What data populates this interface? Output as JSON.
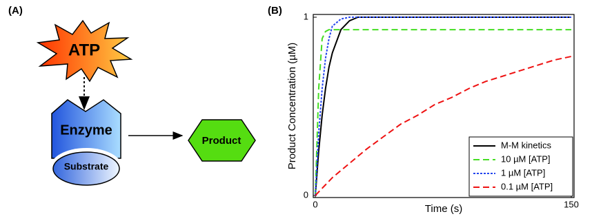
{
  "panels": [
    "(A)",
    "(B)"
  ],
  "diagram": {
    "nodes": [
      {
        "label": "ATP"
      },
      {
        "label": "Enzyme"
      },
      {
        "label": "Substrate"
      },
      {
        "label": "Product"
      }
    ]
  },
  "chart_data": {
    "type": "line",
    "x_label": "Time (s)",
    "y_label": "Product Concentration (µM)",
    "x": [
      0,
      2,
      4,
      6,
      8,
      10,
      15,
      20,
      25,
      30,
      40,
      50,
      60,
      70,
      80,
      90,
      100,
      110,
      120,
      130,
      140,
      150
    ],
    "series": [
      {
        "name": "M-M kinetics",
        "color": "#000000",
        "style": "solid",
        "values": [
          0,
          0.25,
          0.45,
          0.6,
          0.72,
          0.8,
          0.93,
          0.98,
          1,
          1,
          1,
          1,
          1,
          1,
          1,
          1,
          1,
          1,
          1,
          1,
          1,
          1
        ]
      },
      {
        "name": "10 µM [ATP]",
        "color": "#44dd22",
        "style": "dashed",
        "values": [
          0,
          0.6,
          0.88,
          0.92,
          0.93,
          0.93,
          0.93,
          0.93,
          0.93,
          0.93,
          0.93,
          0.93,
          0.93,
          0.93,
          0.93,
          0.93,
          0.93,
          0.93,
          0.93,
          0.93,
          0.93,
          0.93
        ]
      },
      {
        "name": "1 µM [ATP]",
        "color": "#2244ee",
        "style": "dotted",
        "values": [
          0,
          0.35,
          0.6,
          0.77,
          0.88,
          0.95,
          0.99,
          1,
          1,
          1,
          1,
          1,
          1,
          1,
          1,
          1,
          1,
          1,
          1,
          1,
          1,
          1
        ]
      },
      {
        "name": "0.1 µM [ATP]",
        "color": "#ee1111",
        "style": "dashed",
        "values": [
          0,
          0.02,
          0.04,
          0.06,
          0.08,
          0.1,
          0.14,
          0.18,
          0.22,
          0.26,
          0.33,
          0.4,
          0.45,
          0.51,
          0.55,
          0.6,
          0.64,
          0.67,
          0.7,
          0.73,
          0.76,
          0.78
        ]
      }
    ],
    "xlim": [
      0,
      150
    ],
    "ylim": [
      0,
      1
    ],
    "xticks": [
      0,
      150
    ],
    "yticks": [
      0,
      1
    ],
    "legend": "lower right",
    "grid": false
  }
}
